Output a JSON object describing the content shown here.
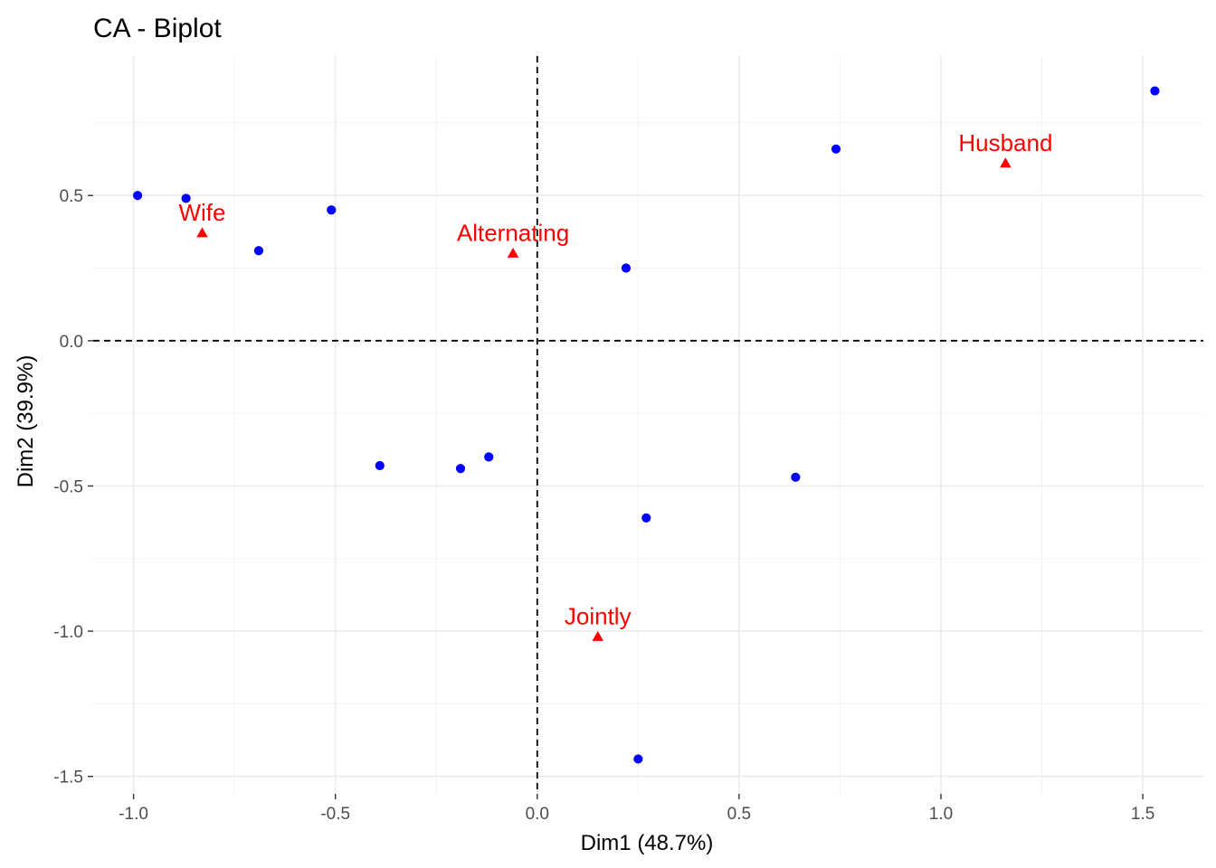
{
  "chart_data": {
    "type": "scatter",
    "title": "CA - Biplot",
    "xlabel": "Dim1 (48.7%)",
    "ylabel": "Dim2 (39.9%)",
    "xlim": [
      -1.1,
      1.65
    ],
    "ylim": [
      -1.56,
      0.98
    ],
    "x_ticks": [
      -1.0,
      -0.5,
      0.0,
      0.5,
      1.0,
      1.5
    ],
    "x_tick_labels": [
      "-1.0",
      "-0.5",
      "0.0",
      "0.5",
      "1.0",
      "1.5"
    ],
    "y_ticks": [
      -1.5,
      -1.0,
      -0.5,
      0.0,
      0.5
    ],
    "y_tick_labels": [
      "-1.5",
      "-1.0",
      "-0.5",
      "0.0",
      "0.5"
    ],
    "grid": true,
    "reference_lines": {
      "x": 0.0,
      "y": 0.0,
      "style": "dashed"
    },
    "series": [
      {
        "kind": "rows",
        "color": "#0000ff",
        "marker": "circle",
        "points": [
          {
            "x": -0.99,
            "y": 0.5
          },
          {
            "x": -0.87,
            "y": 0.49
          },
          {
            "x": -0.69,
            "y": 0.31
          },
          {
            "x": -0.51,
            "y": 0.45
          },
          {
            "x": 0.22,
            "y": 0.25
          },
          {
            "x": 0.74,
            "y": 0.66
          },
          {
            "x": 1.53,
            "y": 0.86
          },
          {
            "x": -0.39,
            "y": -0.43
          },
          {
            "x": -0.19,
            "y": -0.44
          },
          {
            "x": -0.12,
            "y": -0.4
          },
          {
            "x": 0.64,
            "y": -0.47
          },
          {
            "x": 0.27,
            "y": -0.61
          },
          {
            "x": 0.25,
            "y": -1.44
          }
        ]
      },
      {
        "kind": "columns",
        "color": "#ff0000",
        "marker": "triangle",
        "points": [
          {
            "label": "Wife",
            "x": -0.83,
            "y": 0.37
          },
          {
            "label": "Alternating",
            "x": -0.06,
            "y": 0.3
          },
          {
            "label": "Husband",
            "x": 1.16,
            "y": 0.61
          },
          {
            "label": "Jointly",
            "x": 0.15,
            "y": -1.02
          }
        ]
      }
    ]
  }
}
